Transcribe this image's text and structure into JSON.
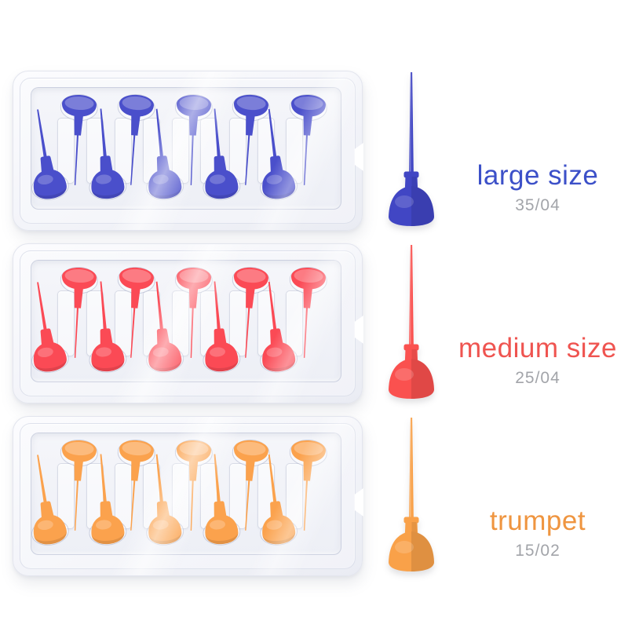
{
  "product": {
    "background": "#ffffff",
    "code_color": "#a2a4a9",
    "pins_per_tray": 10,
    "rows": [
      {
        "name": "large-size",
        "label": "large size",
        "code": "35/04",
        "pin_color": "#4146c4",
        "tray_pin_color": "#4a4fcb",
        "label_color": "#3c50c8"
      },
      {
        "name": "medium-size",
        "label": "medium size",
        "code": "25/04",
        "pin_color": "#fa514f",
        "tray_pin_color": "#fb4a55",
        "label_color": "#ef5450"
      },
      {
        "name": "trumpet",
        "label": "trumpet",
        "code": "15/02",
        "pin_color": "#f9a149",
        "tray_pin_color": "#fba24d",
        "label_color": "#ef9540"
      }
    ]
  }
}
